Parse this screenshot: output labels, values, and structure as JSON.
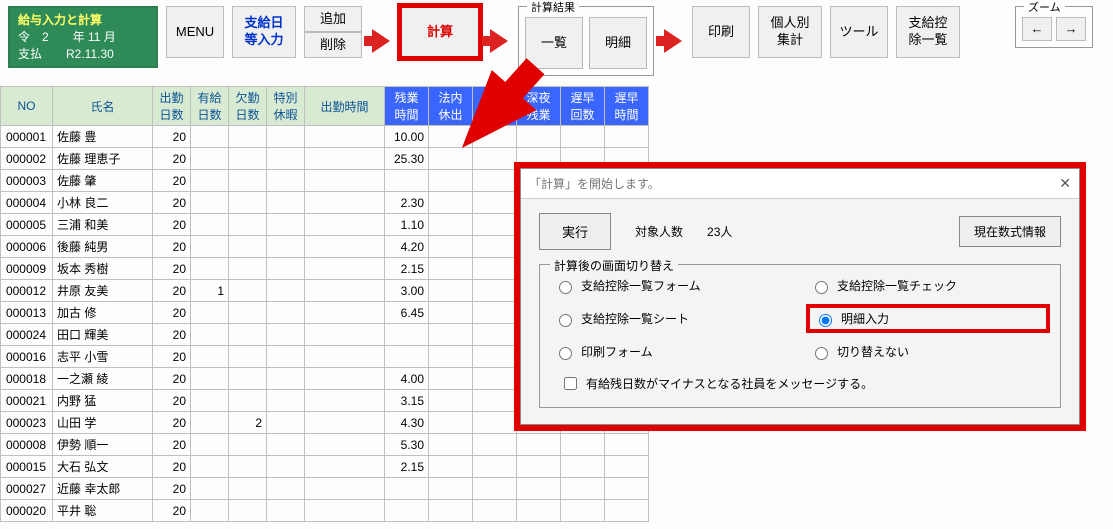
{
  "title_box": {
    "line1": "給与入力と計算",
    "line2": "令　2　　年 11 月",
    "line3": "支払　　R2.11.30"
  },
  "toolbar": {
    "menu": "MENU",
    "pay_input": "支給日\n等入力",
    "add": "追加",
    "del": "削除",
    "calc": "計算",
    "result_label": "計算結果",
    "list": "一覧",
    "detail": "明細",
    "print": "印刷",
    "personal": "個人別\n集計",
    "tool": "ツール",
    "deduct": "支給控\n除一覧"
  },
  "zoom": {
    "label": "ズーム",
    "left": "←",
    "right": "→"
  },
  "columns": {
    "no": "NO",
    "name": "氏名",
    "attend": "出勤\n日数",
    "paid": "有給\n日数",
    "absent": "欠勤\n日数",
    "special": "特別\n休暇",
    "worktime": "出勤時間",
    "ot": "残業\n時間",
    "b1": "法内\n休出",
    "b2": "法外\n休出",
    "b3": "深夜\n残業",
    "b4": "遅早\n回数",
    "b5": "遅早\n時間"
  },
  "rows": [
    {
      "no": "000001",
      "name": "佐藤 豊",
      "attend": "20",
      "paid": "",
      "absent": "",
      "special": "",
      "worktime": "",
      "ot": "10.00"
    },
    {
      "no": "000002",
      "name": "佐藤 理恵子",
      "attend": "20",
      "paid": "",
      "absent": "",
      "special": "",
      "worktime": "",
      "ot": "25.30"
    },
    {
      "no": "000003",
      "name": "佐藤 肇",
      "attend": "20",
      "paid": "",
      "absent": "",
      "special": "",
      "worktime": "",
      "ot": ""
    },
    {
      "no": "000004",
      "name": "小林 良二",
      "attend": "20",
      "paid": "",
      "absent": "",
      "special": "",
      "worktime": "",
      "ot": "2.30"
    },
    {
      "no": "000005",
      "name": "三浦 和美",
      "attend": "20",
      "paid": "",
      "absent": "",
      "special": "",
      "worktime": "",
      "ot": "1.10"
    },
    {
      "no": "000006",
      "name": "後藤 純男",
      "attend": "20",
      "paid": "",
      "absent": "",
      "special": "",
      "worktime": "",
      "ot": "4.20"
    },
    {
      "no": "000009",
      "name": "坂本 秀樹",
      "attend": "20",
      "paid": "",
      "absent": "",
      "special": "",
      "worktime": "",
      "ot": "2.15"
    },
    {
      "no": "000012",
      "name": "井原 友美",
      "attend": "20",
      "paid": "1",
      "absent": "",
      "special": "",
      "worktime": "",
      "ot": "3.00"
    },
    {
      "no": "000013",
      "name": "加古 修",
      "attend": "20",
      "paid": "",
      "absent": "",
      "special": "",
      "worktime": "",
      "ot": "6.45"
    },
    {
      "no": "000024",
      "name": "田口 輝美",
      "attend": "20",
      "paid": "",
      "absent": "",
      "special": "",
      "worktime": "",
      "ot": ""
    },
    {
      "no": "000016",
      "name": "志平 小雪",
      "attend": "20",
      "paid": "",
      "absent": "",
      "special": "",
      "worktime": "",
      "ot": ""
    },
    {
      "no": "000018",
      "name": "一之瀬 綾",
      "attend": "20",
      "paid": "",
      "absent": "",
      "special": "",
      "worktime": "",
      "ot": "4.00"
    },
    {
      "no": "000021",
      "name": "内野 猛",
      "attend": "20",
      "paid": "",
      "absent": "",
      "special": "",
      "worktime": "",
      "ot": "3.15"
    },
    {
      "no": "000023",
      "name": "山田 学",
      "attend": "20",
      "paid": "",
      "absent": "2",
      "special": "",
      "worktime": "",
      "ot": "4.30"
    },
    {
      "no": "000008",
      "name": "伊勢 順一",
      "attend": "20",
      "paid": "",
      "absent": "",
      "special": "",
      "worktime": "",
      "ot": "5.30"
    },
    {
      "no": "000015",
      "name": "大石 弘文",
      "attend": "20",
      "paid": "",
      "absent": "",
      "special": "",
      "worktime": "",
      "ot": "2.15"
    },
    {
      "no": "000027",
      "name": "近藤 幸太郎",
      "attend": "20",
      "paid": "",
      "absent": "",
      "special": "",
      "worktime": "",
      "ot": ""
    },
    {
      "no": "000020",
      "name": "平井 聡",
      "attend": "20",
      "paid": "",
      "absent": "",
      "special": "",
      "worktime": "",
      "ot": ""
    }
  ],
  "dialog": {
    "title": "「計算」を開始します。",
    "run": "実行",
    "target_label": "対象人数",
    "target_value": "23人",
    "info_btn": "現在数式情報",
    "fs_label": "計算後の画面切り替え",
    "r1": "支給控除一覧フォーム",
    "r2": "支給控除一覧チェック",
    "r3": "支給控除一覧シート",
    "r4": "明細入力",
    "r5": "印刷フォーム",
    "r6": "切り替えない",
    "chk": "有給残日数がマイナスとなる社員をメッセージする。"
  }
}
